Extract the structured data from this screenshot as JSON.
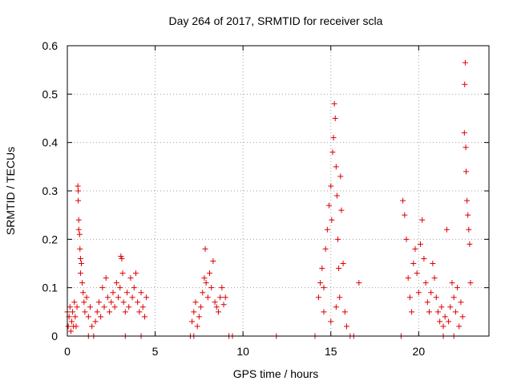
{
  "chart_data": {
    "type": "scatter",
    "title": "Day 264 of 2017, SRMTID for receiver scla",
    "xlabel": "GPS time / hours",
    "ylabel": "SRMTID / TECUs",
    "xlim": [
      0,
      24
    ],
    "ylim": [
      0,
      0.6
    ],
    "xticks": [
      0,
      5,
      10,
      15,
      20
    ],
    "xtick_labels": [
      "0",
      "5",
      "10",
      "15",
      "20"
    ],
    "yticks": [
      0,
      0.1,
      0.2,
      0.3,
      0.4,
      0.5,
      0.6
    ],
    "ytick_labels": [
      "0",
      "0.1",
      "0.2",
      "0.3",
      "0.4",
      "0.5",
      "0.6"
    ],
    "grid": true,
    "marker": "+",
    "color": "#dd0000",
    "series": [
      {
        "name": "SRMTID",
        "points": [
          [
            0.0,
            0.05
          ],
          [
            0.05,
            0.02
          ],
          [
            0.1,
            0.04
          ],
          [
            0.15,
            0.06
          ],
          [
            0.2,
            0.01
          ],
          [
            0.25,
            0.03
          ],
          [
            0.3,
            0.05
          ],
          [
            0.35,
            0.02
          ],
          [
            0.4,
            0.07
          ],
          [
            0.45,
            0.04
          ],
          [
            0.5,
            0.02
          ],
          [
            0.55,
            0.06
          ],
          [
            0.6,
            0.31
          ],
          [
            0.62,
            0.3
          ],
          [
            0.62,
            0.28
          ],
          [
            0.65,
            0.24
          ],
          [
            0.65,
            0.22
          ],
          [
            0.7,
            0.21
          ],
          [
            0.72,
            0.18
          ],
          [
            0.75,
            0.16
          ],
          [
            0.75,
            0.13
          ],
          [
            0.8,
            0.15
          ],
          [
            0.85,
            0.11
          ],
          [
            0.9,
            0.09
          ],
          [
            0.95,
            0.07
          ],
          [
            1.0,
            0.05
          ],
          [
            1.1,
            0.08
          ],
          [
            1.2,
            0.04
          ],
          [
            1.3,
            0.06
          ],
          [
            1.4,
            0.02
          ],
          [
            1.5,
            0.0
          ],
          [
            1.6,
            0.03
          ],
          [
            1.7,
            0.05
          ],
          [
            1.8,
            0.07
          ],
          [
            1.9,
            0.04
          ],
          [
            2.0,
            0.1
          ],
          [
            2.1,
            0.06
          ],
          [
            2.2,
            0.12
          ],
          [
            2.3,
            0.08
          ],
          [
            2.4,
            0.05
          ],
          [
            2.5,
            0.07
          ],
          [
            2.6,
            0.09
          ],
          [
            2.7,
            0.06
          ],
          [
            2.8,
            0.11
          ],
          [
            2.9,
            0.08
          ],
          [
            3.0,
            0.1
          ],
          [
            3.05,
            0.165
          ],
          [
            3.1,
            0.16
          ],
          [
            3.15,
            0.13
          ],
          [
            3.2,
            0.07
          ],
          [
            3.3,
            0.05
          ],
          [
            3.4,
            0.09
          ],
          [
            3.5,
            0.06
          ],
          [
            3.6,
            0.12
          ],
          [
            3.7,
            0.08
          ],
          [
            3.8,
            0.1
          ],
          [
            3.9,
            0.13
          ],
          [
            4.0,
            0.07
          ],
          [
            4.1,
            0.05
          ],
          [
            4.2,
            0.09
          ],
          [
            4.3,
            0.06
          ],
          [
            4.4,
            0.04
          ],
          [
            4.5,
            0.08
          ],
          [
            1.2,
            0.0
          ],
          [
            3.3,
            0.0
          ],
          [
            4.2,
            0.0
          ],
          [
            7.0,
            0.0
          ],
          [
            7.1,
            0.03
          ],
          [
            7.2,
            0.05
          ],
          [
            7.3,
            0.07
          ],
          [
            7.4,
            0.02
          ],
          [
            7.5,
            0.04
          ],
          [
            7.6,
            0.06
          ],
          [
            7.7,
            0.09
          ],
          [
            7.8,
            0.12
          ],
          [
            7.85,
            0.18
          ],
          [
            7.9,
            0.11
          ],
          [
            8.0,
            0.08
          ],
          [
            8.1,
            0.13
          ],
          [
            8.2,
            0.1
          ],
          [
            8.3,
            0.155
          ],
          [
            8.4,
            0.07
          ],
          [
            8.5,
            0.06
          ],
          [
            8.6,
            0.05
          ],
          [
            8.7,
            0.08
          ],
          [
            8.8,
            0.1
          ],
          [
            8.9,
            0.065
          ],
          [
            9.0,
            0.08
          ],
          [
            7.2,
            0.0
          ],
          [
            9.2,
            0.0
          ],
          [
            9.4,
            0.0
          ],
          [
            11.9,
            0.0
          ],
          [
            14.1,
            0.0
          ],
          [
            14.3,
            0.08
          ],
          [
            14.4,
            0.11
          ],
          [
            14.5,
            0.14
          ],
          [
            14.6,
            0.1
          ],
          [
            14.7,
            0.18
          ],
          [
            14.8,
            0.22
          ],
          [
            14.9,
            0.27
          ],
          [
            15.0,
            0.31
          ],
          [
            15.05,
            0.24
          ],
          [
            15.1,
            0.38
          ],
          [
            15.15,
            0.41
          ],
          [
            15.2,
            0.48
          ],
          [
            15.25,
            0.45
          ],
          [
            15.3,
            0.35
          ],
          [
            15.35,
            0.29
          ],
          [
            15.4,
            0.2
          ],
          [
            15.45,
            0.14
          ],
          [
            15.5,
            0.08
          ],
          [
            15.55,
            0.33
          ],
          [
            15.6,
            0.26
          ],
          [
            15.7,
            0.15
          ],
          [
            15.8,
            0.05
          ],
          [
            15.9,
            0.02
          ],
          [
            16.1,
            0.0
          ],
          [
            16.3,
            0.0
          ],
          [
            16.6,
            0.11
          ],
          [
            14.6,
            0.05
          ],
          [
            15.0,
            0.03
          ],
          [
            15.3,
            0.06
          ],
          [
            19.0,
            0.0
          ],
          [
            19.1,
            0.28
          ],
          [
            19.2,
            0.25
          ],
          [
            19.3,
            0.2
          ],
          [
            19.4,
            0.12
          ],
          [
            19.5,
            0.08
          ],
          [
            19.6,
            0.05
          ],
          [
            19.7,
            0.15
          ],
          [
            19.8,
            0.18
          ],
          [
            19.9,
            0.13
          ],
          [
            20.0,
            0.09
          ],
          [
            20.1,
            0.19
          ],
          [
            20.2,
            0.24
          ],
          [
            20.3,
            0.16
          ],
          [
            20.4,
            0.11
          ],
          [
            20.5,
            0.07
          ],
          [
            20.6,
            0.05
          ],
          [
            20.7,
            0.09
          ],
          [
            20.8,
            0.15
          ],
          [
            20.9,
            0.12
          ],
          [
            21.0,
            0.08
          ],
          [
            21.1,
            0.05
          ],
          [
            21.2,
            0.03
          ],
          [
            21.3,
            0.06
          ],
          [
            21.4,
            0.02
          ],
          [
            21.5,
            0.04
          ],
          [
            21.6,
            0.22
          ],
          [
            21.7,
            0.03
          ],
          [
            21.8,
            0.06
          ],
          [
            21.9,
            0.11
          ],
          [
            22.0,
            0.08
          ],
          [
            22.1,
            0.05
          ],
          [
            22.2,
            0.1
          ],
          [
            22.3,
            0.02
          ],
          [
            22.4,
            0.07
          ],
          [
            22.5,
            0.04
          ],
          [
            22.6,
            0.42
          ],
          [
            22.62,
            0.52
          ],
          [
            22.65,
            0.565
          ],
          [
            22.68,
            0.39
          ],
          [
            22.7,
            0.34
          ],
          [
            22.75,
            0.28
          ],
          [
            22.8,
            0.25
          ],
          [
            22.85,
            0.22
          ],
          [
            22.9,
            0.19
          ],
          [
            22.95,
            0.11
          ],
          [
            21.4,
            0.0
          ],
          [
            22.0,
            0.0
          ]
        ]
      }
    ]
  }
}
